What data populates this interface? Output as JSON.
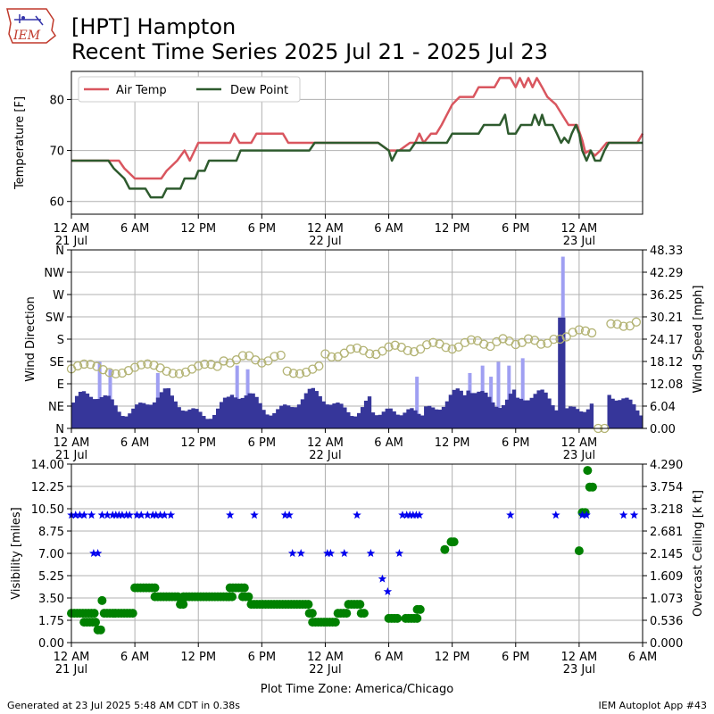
{
  "header": {
    "logo_text": "IEM",
    "title_line1": "[HPT] Hampton",
    "title_line2": "Recent Time Series 2025 Jul 21 - 2025 Jul 23"
  },
  "footer": {
    "generated": "Generated at 23 Jul 2025 5:48 AM CDT in 0.38s",
    "app": "IEM Autoplot App #43"
  },
  "colors": {
    "air_temp": "#d9565f",
    "dew_point": "#2e5b2e",
    "wind_dir": "#b3b374",
    "wind_speed": "#36369a",
    "wind_gust": "#9f9ff2",
    "visibility": "#0000ee",
    "ceiling": "#008000"
  },
  "time_ticks": [
    {
      "h": 0,
      "label": "12 AM",
      "date": "21 Jul"
    },
    {
      "h": 6,
      "label": "6 AM",
      "date": ""
    },
    {
      "h": 12,
      "label": "12 PM",
      "date": ""
    },
    {
      "h": 18,
      "label": "6 PM",
      "date": ""
    },
    {
      "h": 24,
      "label": "12 AM",
      "date": "22 Jul"
    },
    {
      "h": 30,
      "label": "6 AM",
      "date": ""
    },
    {
      "h": 36,
      "label": "12 PM",
      "date": ""
    },
    {
      "h": 42,
      "label": "6 PM",
      "date": ""
    },
    {
      "h": 48,
      "label": "12 AM",
      "date": "23 Jul"
    }
  ],
  "time_ticks_extra": [
    {
      "h": 54,
      "label": "6 AM",
      "date": ""
    }
  ],
  "plot_timezone": "Plot Time Zone: America/Chicago",
  "chart_data": [
    {
      "type": "line",
      "xunit": "hours since 21 Jul 12 AM",
      "xlim": [
        0,
        54
      ],
      "ylabel": "Temperature [F]",
      "ylim": [
        57.5,
        85.5
      ],
      "yticks": [
        60,
        70,
        80
      ],
      "legend_placement": "top-left",
      "grid": true,
      "series": [
        {
          "name": "Air Temp",
          "points": [
            [
              0,
              68
            ],
            [
              4.5,
              68
            ],
            [
              5,
              66.5
            ],
            [
              6,
              64.5
            ],
            [
              8.5,
              64.5
            ],
            [
              9,
              66
            ],
            [
              10,
              68
            ],
            [
              10.7,
              70
            ],
            [
              11.2,
              68
            ],
            [
              12,
              71.5
            ],
            [
              15,
              71.5
            ],
            [
              15.4,
              73.3
            ],
            [
              15.9,
              71.5
            ],
            [
              17,
              71.5
            ],
            [
              17.5,
              73.3
            ],
            [
              20,
              73.3
            ],
            [
              20.5,
              71.5
            ],
            [
              25,
              71.5
            ],
            [
              29,
              71.5
            ],
            [
              30,
              70
            ],
            [
              31,
              70
            ],
            [
              32,
              71.5
            ],
            [
              32.5,
              71.5
            ],
            [
              32.9,
              73.3
            ],
            [
              33.3,
              71.5
            ],
            [
              34,
              73.3
            ],
            [
              34.5,
              73.3
            ],
            [
              35,
              75
            ],
            [
              35.5,
              77
            ],
            [
              36,
              79
            ],
            [
              36.7,
              80.5
            ],
            [
              38,
              80.5
            ],
            [
              38.5,
              82.4
            ],
            [
              40,
              82.4
            ],
            [
              40.5,
              84.2
            ],
            [
              41.5,
              84.2
            ],
            [
              42,
              82.4
            ],
            [
              42.4,
              84.2
            ],
            [
              42.8,
              82.4
            ],
            [
              43.2,
              84.2
            ],
            [
              43.6,
              82.4
            ],
            [
              44,
              84.2
            ],
            [
              44.5,
              82.4
            ],
            [
              45,
              80.5
            ],
            [
              45.8,
              79
            ],
            [
              46.4,
              77
            ],
            [
              47,
              75
            ],
            [
              47.8,
              75
            ],
            [
              48.3,
              72
            ],
            [
              48.6,
              69.5
            ],
            [
              49,
              70
            ],
            [
              49.5,
              69
            ],
            [
              50,
              70
            ],
            [
              50.6,
              71.5
            ],
            [
              53.5,
              71.5
            ],
            [
              54,
              73.3
            ]
          ]
        },
        {
          "name": "Dew Point",
          "points": [
            [
              0,
              68
            ],
            [
              3.5,
              68
            ],
            [
              4,
              66.5
            ],
            [
              5,
              64.5
            ],
            [
              5.5,
              62.5
            ],
            [
              7,
              62.5
            ],
            [
              7.5,
              60.8
            ],
            [
              8.6,
              60.8
            ],
            [
              9,
              62.5
            ],
            [
              10.3,
              62.5
            ],
            [
              10.7,
              64.5
            ],
            [
              11.7,
              64.5
            ],
            [
              12,
              66
            ],
            [
              12.6,
              66
            ],
            [
              13,
              68
            ],
            [
              15.6,
              68
            ],
            [
              16,
              70
            ],
            [
              22.5,
              70
            ],
            [
              23,
              71.5
            ],
            [
              29,
              71.5
            ],
            [
              30,
              70
            ],
            [
              30.3,
              68
            ],
            [
              30.8,
              70
            ],
            [
              32,
              70
            ],
            [
              32.5,
              71.5
            ],
            [
              35.5,
              71.5
            ],
            [
              36,
              73.3
            ],
            [
              38.5,
              73.3
            ],
            [
              39,
              75
            ],
            [
              40.5,
              75
            ],
            [
              41,
              77
            ],
            [
              41.3,
              73.3
            ],
            [
              42,
              73.3
            ],
            [
              42.5,
              75
            ],
            [
              43.5,
              75
            ],
            [
              43.8,
              77
            ],
            [
              44.2,
              75
            ],
            [
              44.5,
              77
            ],
            [
              44.8,
              75
            ],
            [
              45.5,
              75
            ],
            [
              45.9,
              73.3
            ],
            [
              46.3,
              71.5
            ],
            [
              46.6,
              72.5
            ],
            [
              47,
              71.5
            ],
            [
              47.3,
              73.3
            ],
            [
              47.7,
              75
            ],
            [
              48,
              73.3
            ],
            [
              48.3,
              70
            ],
            [
              48.7,
              68
            ],
            [
              49.1,
              70
            ],
            [
              49.5,
              68
            ],
            [
              50,
              68
            ],
            [
              50.4,
              70
            ],
            [
              50.8,
              71.5
            ],
            [
              54,
              71.5
            ]
          ]
        }
      ]
    },
    {
      "type": "bar",
      "xlim": [
        0,
        54
      ],
      "ylabel": "Wind Direction",
      "ylabel_right": "Wind Speed [mph]",
      "dir_ticks": [
        "N",
        "NE",
        "E",
        "SE",
        "S",
        "SW",
        "W",
        "NW",
        "N"
      ],
      "speed_ylim": [
        0,
        48.33
      ],
      "speed_ticks": [
        "0.00",
        "6.04",
        "12.08",
        "18.12",
        "24.17",
        "30.21",
        "36.25",
        "42.29",
        "48.33"
      ],
      "grid": true,
      "gust_hours": [
        2.5,
        3.5,
        8,
        15.5,
        16.5,
        32.5,
        37.5,
        38.7,
        39.5,
        40.2,
        41.2,
        42.5,
        46.3
      ],
      "gust_values": [
        18,
        16,
        15,
        17,
        16,
        14,
        15,
        17,
        14,
        18,
        17,
        19,
        46.5
      ]
    },
    {
      "type": "scatter",
      "xlim": [
        0,
        54
      ],
      "ylabel": "Visibility [miles]",
      "ylabel_right": "Overcast Ceiling [k ft]",
      "vis_ylim": [
        0,
        14
      ],
      "vis_ticks": [
        "0.00",
        "1.75",
        "3.50",
        "5.25",
        "7.00",
        "8.75",
        "10.50",
        "12.25",
        "14.00"
      ],
      "ceil_ticks": [
        "0.000",
        "0.536",
        "1.073",
        "1.609",
        "2.145",
        "2.681",
        "3.218",
        "3.754",
        "4.290"
      ],
      "grid": true,
      "visibility": [
        [
          0,
          10
        ],
        [
          0.4,
          10
        ],
        [
          0.8,
          10
        ],
        [
          1.2,
          10
        ],
        [
          1.9,
          10
        ],
        [
          2.1,
          7
        ],
        [
          2.5,
          7
        ],
        [
          2.9,
          10
        ],
        [
          3.4,
          10
        ],
        [
          3.9,
          10
        ],
        [
          4.2,
          10
        ],
        [
          4.5,
          10
        ],
        [
          4.8,
          10
        ],
        [
          5.2,
          10
        ],
        [
          5.5,
          10
        ],
        [
          6.2,
          10
        ],
        [
          6.6,
          10
        ],
        [
          7.2,
          10
        ],
        [
          7.7,
          10
        ],
        [
          8,
          10
        ],
        [
          8.4,
          10
        ],
        [
          8.8,
          10
        ],
        [
          9.4,
          10
        ],
        [
          15,
          10
        ],
        [
          17.3,
          10
        ],
        [
          20.2,
          10
        ],
        [
          20.6,
          10
        ],
        [
          20.9,
          7
        ],
        [
          21.7,
          7
        ],
        [
          24.2,
          7
        ],
        [
          24.5,
          7
        ],
        [
          25.8,
          7
        ],
        [
          27,
          10
        ],
        [
          28.3,
          7
        ],
        [
          29.4,
          5
        ],
        [
          29.9,
          4
        ],
        [
          31,
          7
        ],
        [
          31.3,
          10
        ],
        [
          31.7,
          10
        ],
        [
          32,
          10
        ],
        [
          32.3,
          10
        ],
        [
          32.6,
          10
        ],
        [
          32.9,
          10
        ],
        [
          41.5,
          10
        ],
        [
          45.8,
          10
        ],
        [
          48.3,
          10
        ],
        [
          48.7,
          10
        ],
        [
          52.2,
          10
        ],
        [
          53.2,
          10
        ]
      ]
    }
  ]
}
